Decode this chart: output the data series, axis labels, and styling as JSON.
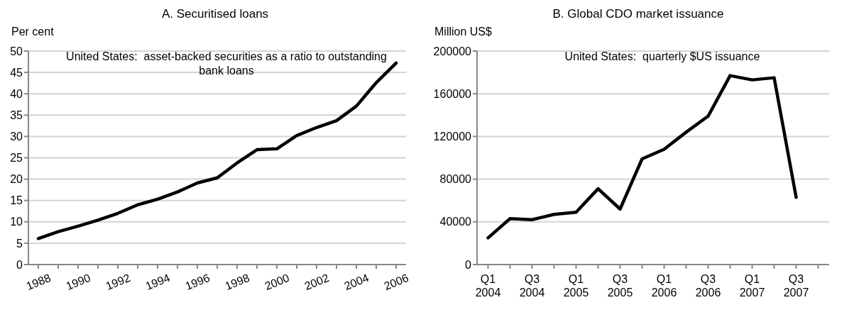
{
  "chart_data": [
    {
      "type": "line",
      "title": "A.  Securitised loans",
      "ylabel": "Per cent",
      "annotations": [
        "United States:  asset-backed securities as a ratio to outstanding bank loans"
      ],
      "categories": [
        "1988",
        null,
        "1990",
        null,
        "1992",
        null,
        "1994",
        null,
        "1996",
        null,
        "1998",
        null,
        "2000",
        null,
        "2002",
        null,
        "2004",
        null,
        "2006"
      ],
      "series": [
        {
          "color": "#000000",
          "values": [
            6.1,
            7.7,
            9.0,
            10.4,
            12.0,
            14.0,
            15.3,
            17.0,
            19.1,
            20.3,
            23.8,
            26.9,
            27.1,
            30.2,
            32.1,
            33.7,
            37.1,
            42.6,
            47.2
          ]
        }
      ],
      "ylim": [
        0,
        50
      ],
      "yticks": [
        0,
        5,
        10,
        15,
        20,
        25,
        30,
        35,
        40,
        45,
        50
      ],
      "grid": "y",
      "legend": false,
      "marker": "none",
      "line_style": "solid"
    },
    {
      "type": "line",
      "title": "B.  Global CDO market issuance",
      "ylabel": "Million US$",
      "annotations": [
        "United States:  quarterly $US issuance"
      ],
      "categories": [
        "Q1 2004",
        null,
        "Q3 2004",
        null,
        "Q1 2005",
        null,
        "Q3 2005",
        null,
        "Q1 2006",
        null,
        "Q3 2006",
        null,
        "Q1 2007",
        null,
        "Q3 2007",
        null
      ],
      "series": [
        {
          "color": "#000000",
          "values": [
            25000,
            43000,
            42000,
            47000,
            49000,
            71000,
            52000,
            99000,
            108000,
            124000,
            139000,
            177000,
            173000,
            175000,
            63000,
            null
          ]
        }
      ],
      "ylim": [
        0,
        200000
      ],
      "yticks": [
        0,
        40000,
        80000,
        120000,
        160000,
        200000
      ],
      "grid": "y",
      "legend": false,
      "marker": "none",
      "line_style": "solid"
    }
  ]
}
